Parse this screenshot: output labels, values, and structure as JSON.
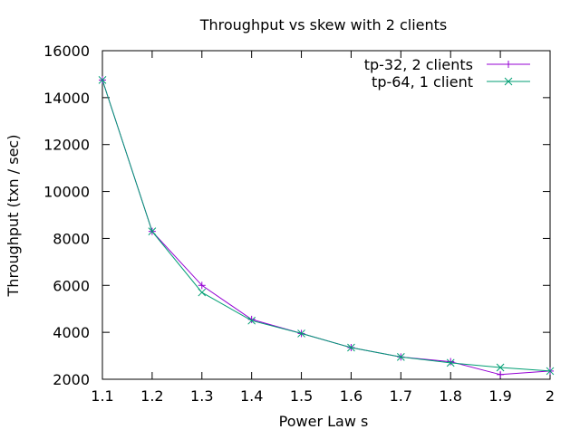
{
  "chart_data": {
    "type": "line",
    "title": "Throughput vs skew with 2 clients",
    "xlabel": "Power Law s",
    "ylabel": "Throughput (txn / sec)",
    "xlim": [
      1.1,
      2.0
    ],
    "ylim": [
      2000,
      16000
    ],
    "x_ticks": [
      "1.1",
      "1.2",
      "1.3",
      "1.4",
      "1.5",
      "1.6",
      "1.7",
      "1.8",
      "1.9",
      "2"
    ],
    "y_ticks": [
      "2000",
      "4000",
      "6000",
      "8000",
      "10000",
      "12000",
      "14000",
      "16000"
    ],
    "grid": false,
    "legend_position": "top-right",
    "series": [
      {
        "name": "tp-32, 2 clients",
        "color": "#9400d3",
        "marker": "plus",
        "x": [
          1.1,
          1.2,
          1.3,
          1.4,
          1.5,
          1.6,
          1.7,
          1.8,
          1.9,
          2.0
        ],
        "y": [
          14750,
          8300,
          6000,
          4550,
          3950,
          3350,
          2950,
          2750,
          2200,
          2350
        ]
      },
      {
        "name": "tp-64, 1 client",
        "color": "#009e73",
        "marker": "cross",
        "x": [
          1.1,
          1.2,
          1.3,
          1.4,
          1.5,
          1.6,
          1.7,
          1.8,
          1.9,
          2.0
        ],
        "y": [
          14750,
          8300,
          5700,
          4500,
          3950,
          3350,
          2950,
          2700,
          2500,
          2350
        ]
      }
    ]
  }
}
